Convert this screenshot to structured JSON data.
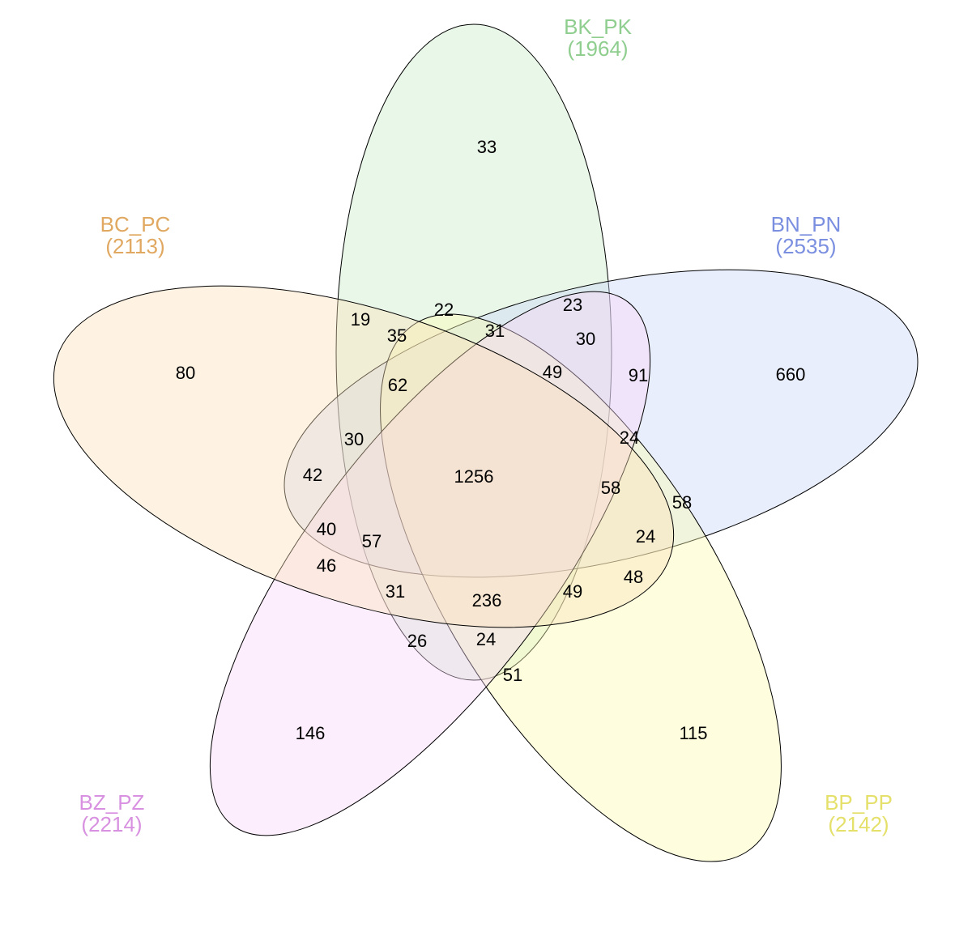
{
  "sets": [
    {
      "key": "bk",
      "name": "BK_PK",
      "total": "(1964)",
      "fill": "#c8ecc8",
      "label_color": "#8fce8f"
    },
    {
      "key": "bn",
      "name": "BN_PN",
      "total": "(2535)",
      "fill": "#c8d4f8",
      "label_color": "#7b8fe0"
    },
    {
      "key": "bp",
      "name": "BP_PP",
      "total": "(2142)",
      "fill": "#fdfcb0",
      "label_color": "#e4e06a"
    },
    {
      "key": "bz",
      "name": "BZ_PZ",
      "total": "(2214)",
      "fill": "#f8d4f8",
      "label_color": "#d890e0"
    },
    {
      "key": "bc",
      "name": "BC_PC",
      "total": "(2113)",
      "fill": "#fde2b8",
      "label_color": "#e0a860"
    }
  ],
  "regions": [
    "33",
    "660",
    "115",
    "146",
    "80",
    "23",
    "30",
    "91",
    "49",
    "31",
    "22",
    "35",
    "19",
    "62",
    "30",
    "42",
    "40",
    "46",
    "57",
    "31",
    "26",
    "24",
    "51",
    "236",
    "49",
    "48",
    "24",
    "58",
    "58",
    "24",
    "1256"
  ]
}
